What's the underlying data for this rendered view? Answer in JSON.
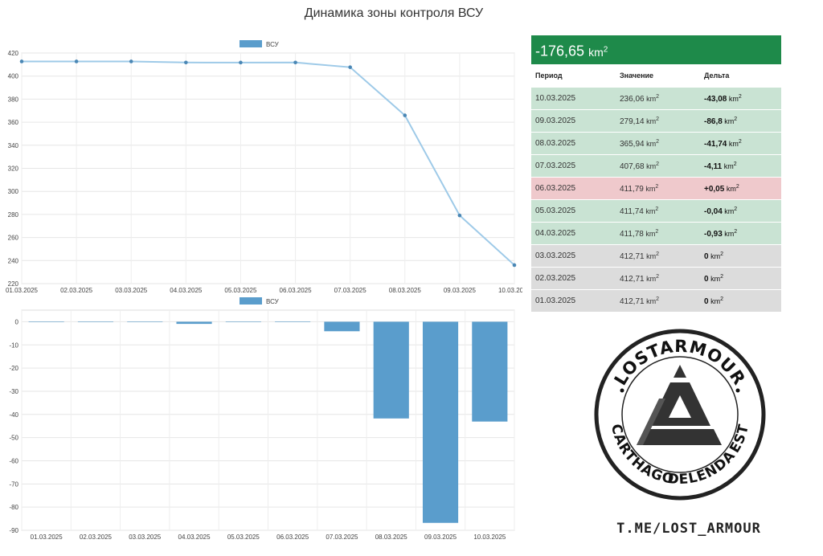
{
  "title": "Динамика зоны контроля ВСУ",
  "chart_data": [
    {
      "type": "line",
      "x": [
        "01.03.2025",
        "02.03.2025",
        "03.03.2025",
        "04.03.2025",
        "05.03.2025",
        "06.03.2025",
        "07.03.2025",
        "08.03.2025",
        "09.03.2025",
        "10.03.2025"
      ],
      "series": [
        {
          "name": "ВСУ",
          "values": [
            412.71,
            412.71,
            412.71,
            411.78,
            411.74,
            411.79,
            407.68,
            365.94,
            279.14,
            236.06
          ]
        }
      ],
      "ylim": [
        220,
        420
      ],
      "yticks": [
        220,
        240,
        260,
        280,
        300,
        320,
        340,
        360,
        380,
        400,
        420
      ],
      "legend": "top",
      "grid": true,
      "color": "#9ecae8"
    },
    {
      "type": "bar",
      "categories": [
        "01.03.2025",
        "02.03.2025",
        "03.03.2025",
        "04.03.2025",
        "05.03.2025",
        "06.03.2025",
        "07.03.2025",
        "08.03.2025",
        "09.03.2025",
        "10.03.2025"
      ],
      "series": [
        {
          "name": "ВСУ",
          "values": [
            0,
            0,
            0,
            -0.93,
            -0.04,
            0.05,
            -4.11,
            -41.74,
            -86.8,
            -43.08
          ]
        }
      ],
      "ylim": [
        -90,
        5
      ],
      "yticks": [
        -90,
        -80,
        -70,
        -60,
        -50,
        -40,
        -30,
        -20,
        -10,
        0
      ],
      "legend": "top",
      "grid": true,
      "color": "#5a9dcc"
    }
  ],
  "summary": {
    "total": "-176,65",
    "unit": "km",
    "headers": {
      "period": "Период",
      "value": "Значение",
      "delta": "Дельта"
    },
    "rows": [
      {
        "period": "10.03.2025",
        "value": "236,06",
        "delta": "-43,08",
        "status": "decrease"
      },
      {
        "period": "09.03.2025",
        "value": "279,14",
        "delta": "-86,8",
        "status": "decrease"
      },
      {
        "period": "08.03.2025",
        "value": "365,94",
        "delta": "-41,74",
        "status": "decrease"
      },
      {
        "period": "07.03.2025",
        "value": "407,68",
        "delta": "-4,11",
        "status": "decrease"
      },
      {
        "period": "06.03.2025",
        "value": "411,79",
        "delta": "+0,05",
        "status": "increase"
      },
      {
        "period": "05.03.2025",
        "value": "411,74",
        "delta": "-0,04",
        "status": "decrease"
      },
      {
        "period": "04.03.2025",
        "value": "411,78",
        "delta": "-0,93",
        "status": "decrease"
      },
      {
        "period": "03.03.2025",
        "value": "412,71",
        "delta": "0",
        "status": "none"
      },
      {
        "period": "02.03.2025",
        "value": "412,71",
        "delta": "0",
        "status": "none"
      },
      {
        "period": "01.03.2025",
        "value": "412,71",
        "delta": "0",
        "status": "none"
      }
    ],
    "colors": {
      "header": "#1e8a4a",
      "decrease": "#c9e3d3",
      "increase": "#efc9cc",
      "none": "#dcdcdc"
    }
  },
  "logo": {
    "ring_top": "LOSTARMOUR",
    "ring_right": "CARTHAGO",
    "ring_bottom": "DELENDA",
    "ring_left": "EST"
  },
  "channel": "T.ME/LOST_ARMOUR"
}
